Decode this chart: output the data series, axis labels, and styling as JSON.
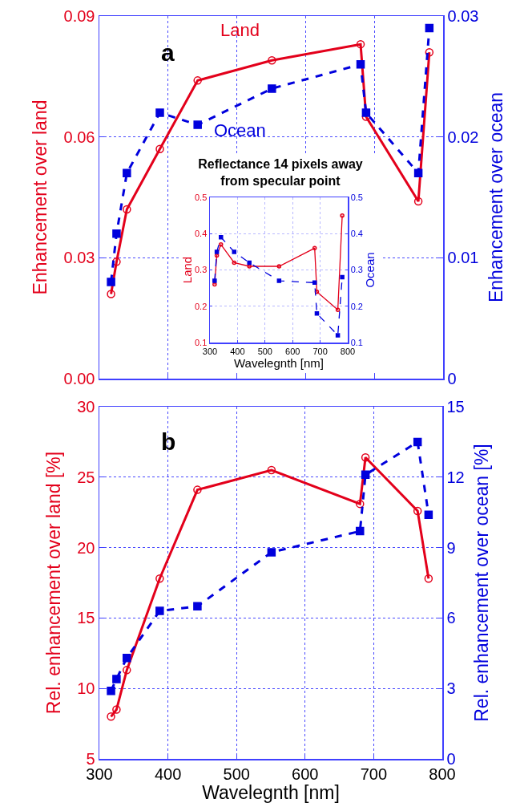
{
  "chart_data": [
    {
      "type": "line",
      "x": [
        317,
        325,
        340,
        388,
        443,
        551,
        680,
        688,
        764,
        780
      ],
      "ylabel": "Enhancement over land",
      "y2label": "Enhancement over ocean",
      "annotations": [
        "a"
      ],
      "xlim": [
        300,
        800
      ],
      "xticks": [
        300,
        400,
        500,
        600,
        700,
        800
      ],
      "ylim": [
        0,
        0.09
      ],
      "yticks": [
        {
          "value": 0,
          "label": "0.00"
        },
        0.03,
        0.06,
        0.09
      ],
      "y2lim": [
        0,
        0.03
      ],
      "y2ticks": [
        0,
        0.01,
        0.02,
        0.03
      ],
      "tick_labels": "y",
      "grid": true,
      "series": [
        {
          "name": "Land",
          "color": "#e3001b",
          "marker": "circle",
          "line_style": "solid",
          "values": [
            0.021,
            0.029,
            0.042,
            0.057,
            0.074,
            0.079,
            0.083,
            0.065,
            0.044,
            0.081
          ]
        },
        {
          "name": "Ocean",
          "color": "#0000dd",
          "marker": "square",
          "line_style": "dashed",
          "axis": "y2",
          "values": [
            0.008,
            0.012,
            0.017,
            0.022,
            0.021,
            0.024,
            0.026,
            0.022,
            0.017,
            0.029
          ]
        }
      ]
    },
    {
      "type": "line",
      "title": "Reflectance 14 pixels away from specular point",
      "x": [
        317,
        325,
        340,
        388,
        443,
        551,
        680,
        688,
        764,
        780
      ],
      "xlabel": "Wavelegnth [nm]",
      "ylabel": "Land",
      "y2label": "Ocean",
      "xlim": [
        300,
        800
      ],
      "xticks": [
        300,
        400,
        500,
        600,
        700,
        800
      ],
      "ylim": [
        0.1,
        0.5
      ],
      "yticks": [
        0.1,
        0.2,
        0.3,
        0.4,
        0.5
      ],
      "y2lim": [
        0.1,
        0.5
      ],
      "y2ticks": [
        0.1,
        0.2,
        0.3,
        0.4,
        0.5
      ],
      "grid": true,
      "series": [
        {
          "color": "#e3001b",
          "marker": "circle",
          "line_style": "solid",
          "values": [
            0.26,
            0.34,
            0.37,
            0.32,
            0.31,
            0.31,
            0.36,
            0.24,
            0.19,
            0.45
          ]
        },
        {
          "color": "#0000dd",
          "marker": "square",
          "line_style": "dashed",
          "axis": "y2",
          "values": [
            0.27,
            0.35,
            0.39,
            0.35,
            0.32,
            0.27,
            0.265,
            0.18,
            0.12,
            0.28
          ]
        }
      ]
    },
    {
      "type": "line",
      "x": [
        317,
        325,
        340,
        388,
        443,
        551,
        680,
        688,
        764,
        780
      ],
      "xlabel": "Wavelegnth [nm]",
      "ylabel": "Rel. enhancement over land [%]",
      "y2label": "Rel. enhancement over ocean [%]",
      "annotations": [
        "b"
      ],
      "xlim": [
        300,
        800
      ],
      "xticks": [
        300,
        400,
        500,
        600,
        700,
        800
      ],
      "ylim": [
        5,
        30
      ],
      "yticks": [
        5,
        10,
        15,
        20,
        25,
        30
      ],
      "y2lim": [
        0,
        15
      ],
      "y2ticks": [
        0,
        3,
        6,
        9,
        12,
        15
      ],
      "grid": true,
      "series": [
        {
          "color": "#e3001b",
          "marker": "circle",
          "line_style": "solid",
          "values": [
            8.0,
            8.5,
            11.3,
            17.8,
            24.1,
            25.5,
            23.1,
            26.4,
            22.6,
            17.8
          ]
        },
        {
          "color": "#0000dd",
          "marker": "square",
          "line_style": "dashed",
          "axis": "y2",
          "values": [
            2.9,
            3.4,
            4.3,
            6.3,
            6.5,
            8.8,
            9.7,
            12.1,
            13.5,
            10.4
          ]
        }
      ]
    }
  ]
}
